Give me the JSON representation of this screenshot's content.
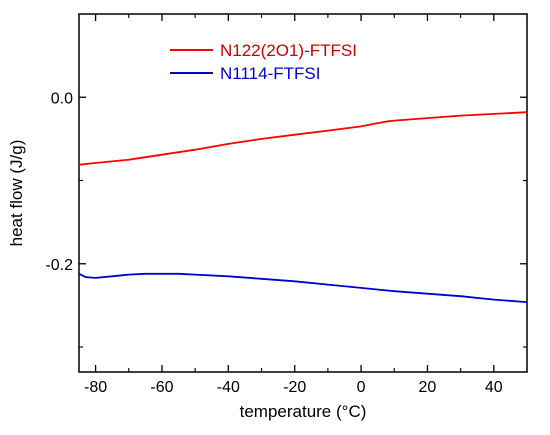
{
  "chart_data": {
    "type": "line",
    "xlabel": "temperature (°C)",
    "ylabel": "heat flow (J/g)",
    "xlim": [
      -85,
      50
    ],
    "ylim": [
      -0.33,
      0.1
    ],
    "x_ticks": [
      -80,
      -60,
      -40,
      -20,
      0,
      20,
      40
    ],
    "y_ticks": [
      0.0,
      -0.2
    ],
    "x_tick_labels": [
      "-80",
      "-60",
      "-40",
      "-20",
      "0",
      "20",
      "40"
    ],
    "y_tick_labels": [
      "0.0",
      "-0.2"
    ],
    "grid": false,
    "legend_position": "top-center",
    "series": [
      {
        "name": "N122(2O1)-FTFSI",
        "color": "#ff0000",
        "x": [
          -85,
          -80,
          -70,
          -60,
          -50,
          -40,
          -30,
          -20,
          -10,
          0,
          5,
          8,
          10,
          20,
          30,
          40,
          50
        ],
        "y": [
          -0.081,
          -0.079,
          -0.075,
          -0.069,
          -0.063,
          -0.056,
          -0.05,
          -0.045,
          -0.04,
          -0.035,
          -0.031,
          -0.029,
          -0.028,
          -0.025,
          -0.022,
          -0.02,
          -0.018
        ]
      },
      {
        "name": "N1114-FTFSI",
        "color": "#0000cc",
        "x": [
          -85,
          -83,
          -80,
          -75,
          -70,
          -65,
          -60,
          -55,
          -50,
          -40,
          -30,
          -20,
          -10,
          0,
          10,
          20,
          30,
          40,
          50
        ],
        "y": [
          -0.212,
          -0.216,
          -0.217,
          -0.215,
          -0.213,
          -0.212,
          -0.212,
          -0.212,
          -0.213,
          -0.215,
          -0.218,
          -0.221,
          -0.225,
          -0.229,
          -0.233,
          -0.236,
          -0.239,
          -0.243,
          -0.246
        ]
      }
    ]
  }
}
